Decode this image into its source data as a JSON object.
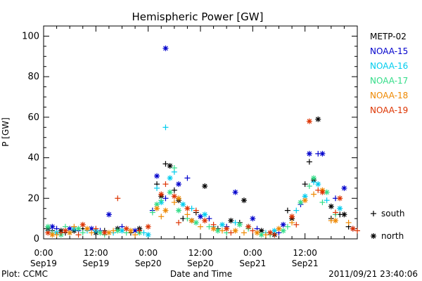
{
  "chart_data": {
    "type": "scatter",
    "title": "Hemispheric Power [GW]",
    "ylabel": "P [GW]",
    "xlabel": "Date and Time",
    "ylim": [
      0,
      105
    ],
    "xlim": [
      0,
      72
    ],
    "x_units": "hours since 2011-09-19 00:00 UT",
    "x_tick_labels": [
      {
        "x": 0,
        "time": "0:00",
        "date": "Sep19"
      },
      {
        "x": 12,
        "time": "12:00",
        "date": "Sep19"
      },
      {
        "x": 24,
        "time": "0:00",
        "date": "Sep20"
      },
      {
        "x": 36,
        "time": "12:00",
        "date": "Sep20"
      },
      {
        "x": 48,
        "time": "0:00",
        "date": "Sep21"
      },
      {
        "x": 60,
        "time": "12:00",
        "date": "Sep21"
      }
    ],
    "y_ticks": [
      0,
      20,
      40,
      60,
      80,
      100
    ],
    "marker_legend": [
      {
        "symbol": "+",
        "label": "south"
      },
      {
        "symbol": "*",
        "label": "north"
      }
    ],
    "series": [
      {
        "name": "METP-02",
        "color": "#000000",
        "south": [
          [
            2,
            4
          ],
          [
            5,
            3
          ],
          [
            9,
            5
          ],
          [
            14,
            4
          ],
          [
            20,
            3
          ],
          [
            26,
            27
          ],
          [
            28,
            37
          ],
          [
            30,
            24
          ],
          [
            32,
            10
          ],
          [
            35,
            13
          ],
          [
            40,
            5
          ],
          [
            45,
            8
          ],
          [
            52,
            3
          ],
          [
            56,
            14
          ],
          [
            60,
            27
          ],
          [
            61,
            38
          ],
          [
            66,
            10
          ],
          [
            68,
            12
          ],
          [
            70,
            6
          ]
        ],
        "north": [
          [
            1,
            5
          ],
          [
            4,
            4
          ],
          [
            7,
            4
          ],
          [
            12,
            3
          ],
          [
            17,
            5
          ],
          [
            22,
            5
          ],
          [
            27,
            21
          ],
          [
            29,
            36
          ],
          [
            31,
            19
          ],
          [
            34,
            9
          ],
          [
            37,
            26
          ],
          [
            43,
            9
          ],
          [
            46,
            19
          ],
          [
            50,
            4
          ],
          [
            53,
            2
          ],
          [
            57,
            10
          ],
          [
            62,
            29
          ],
          [
            63,
            59
          ],
          [
            66,
            16
          ],
          [
            69,
            12
          ]
        ]
      },
      {
        "name": "NOAA-15",
        "color": "#0000cc",
        "south": [
          [
            3,
            5
          ],
          [
            8,
            4
          ],
          [
            13,
            4
          ],
          [
            18,
            6
          ],
          [
            25,
            14
          ],
          [
            28,
            20
          ],
          [
            33,
            30
          ],
          [
            38,
            10
          ],
          [
            42,
            6
          ],
          [
            49,
            5
          ],
          [
            54,
            3
          ],
          [
            59,
            17
          ],
          [
            63,
            42
          ],
          [
            67,
            20
          ],
          [
            71,
            5
          ]
        ],
        "north": [
          [
            2,
            6
          ],
          [
            6,
            5
          ],
          [
            11,
            5
          ],
          [
            15,
            12
          ],
          [
            21,
            4
          ],
          [
            26,
            31
          ],
          [
            28,
            94
          ],
          [
            31,
            27
          ],
          [
            36,
            11
          ],
          [
            44,
            23
          ],
          [
            48,
            10
          ],
          [
            55,
            7
          ],
          [
            61,
            42
          ],
          [
            64,
            42
          ],
          [
            69,
            25
          ]
        ]
      },
      {
        "name": "NOAA-16",
        "color": "#00ccee",
        "south": [
          [
            1,
            4
          ],
          [
            6,
            3
          ],
          [
            10,
            4
          ],
          [
            16,
            3
          ],
          [
            23,
            3
          ],
          [
            26,
            25
          ],
          [
            28,
            55
          ],
          [
            30,
            33
          ],
          [
            34,
            15
          ],
          [
            39,
            6
          ],
          [
            44,
            8
          ],
          [
            51,
            3
          ],
          [
            58,
            14
          ],
          [
            62,
            28
          ],
          [
            65,
            19
          ]
        ],
        "north": [
          [
            3,
            3
          ],
          [
            7,
            5
          ],
          [
            12,
            4
          ],
          [
            18,
            4
          ],
          [
            24,
            2
          ],
          [
            27,
            18
          ],
          [
            29,
            30
          ],
          [
            32,
            17
          ],
          [
            37,
            12
          ],
          [
            41,
            7
          ],
          [
            47,
            6
          ],
          [
            53,
            4
          ],
          [
            60,
            21
          ],
          [
            63,
            27
          ],
          [
            68,
            15
          ]
        ]
      },
      {
        "name": "NOAA-17",
        "color": "#33dd88",
        "south": [
          [
            2,
            3
          ],
          [
            5,
            6
          ],
          [
            9,
            3
          ],
          [
            14,
            2
          ],
          [
            19,
            3
          ],
          [
            25,
            13
          ],
          [
            27,
            19
          ],
          [
            30,
            35
          ],
          [
            33,
            10
          ],
          [
            38,
            6
          ],
          [
            42,
            3
          ],
          [
            47,
            5
          ],
          [
            52,
            2
          ],
          [
            56,
            6
          ],
          [
            61,
            26
          ],
          [
            64,
            18
          ],
          [
            67,
            12
          ]
        ],
        "north": [
          [
            1,
            6
          ],
          [
            4,
            2
          ],
          [
            8,
            5
          ],
          [
            13,
            3
          ],
          [
            17,
            4
          ],
          [
            22,
            3
          ],
          [
            26,
            17
          ],
          [
            29,
            23
          ],
          [
            31,
            14
          ],
          [
            35,
            8
          ],
          [
            40,
            4
          ],
          [
            45,
            7
          ],
          [
            50,
            2
          ],
          [
            55,
            4
          ],
          [
            59,
            18
          ],
          [
            62,
            30
          ],
          [
            65,
            23
          ]
        ]
      },
      {
        "name": "NOAA-18",
        "color": "#ee8800",
        "south": [
          [
            3,
            2
          ],
          [
            7,
            6
          ],
          [
            11,
            3
          ],
          [
            16,
            4
          ],
          [
            21,
            2
          ],
          [
            27,
            11
          ],
          [
            30,
            18
          ],
          [
            33,
            12
          ],
          [
            36,
            6
          ],
          [
            41,
            4
          ],
          [
            46,
            3
          ],
          [
            51,
            2
          ],
          [
            57,
            8
          ],
          [
            62,
            22
          ],
          [
            66,
            9
          ],
          [
            70,
            8
          ]
        ],
        "north": [
          [
            2,
            2
          ],
          [
            6,
            3
          ],
          [
            10,
            5
          ],
          [
            15,
            3
          ],
          [
            20,
            4
          ],
          [
            26,
            15
          ],
          [
            28,
            14
          ],
          [
            31,
            20
          ],
          [
            34,
            9
          ],
          [
            39,
            5
          ],
          [
            44,
            4
          ],
          [
            49,
            3
          ],
          [
            54,
            5
          ],
          [
            60,
            19
          ],
          [
            64,
            24
          ],
          [
            67,
            9
          ]
        ]
      },
      {
        "name": "NOAA-19",
        "color": "#dd3300",
        "south": [
          [
            4,
            3
          ],
          [
            8,
            2
          ],
          [
            12,
            5
          ],
          [
            17,
            20
          ],
          [
            22,
            4
          ],
          [
            28,
            27
          ],
          [
            31,
            8
          ],
          [
            35,
            14
          ],
          [
            39,
            7
          ],
          [
            43,
            3
          ],
          [
            48,
            4
          ],
          [
            53,
            2
          ],
          [
            58,
            7
          ],
          [
            63,
            24
          ],
          [
            67,
            13
          ],
          [
            72,
            4
          ]
        ],
        "north": [
          [
            1,
            3
          ],
          [
            5,
            4
          ],
          [
            9,
            7
          ],
          [
            14,
            3
          ],
          [
            19,
            5
          ],
          [
            24,
            6
          ],
          [
            27,
            22
          ],
          [
            30,
            21
          ],
          [
            33,
            15
          ],
          [
            37,
            9
          ],
          [
            42,
            5
          ],
          [
            47,
            6
          ],
          [
            52,
            3
          ],
          [
            57,
            11
          ],
          [
            61,
            58
          ],
          [
            64,
            23
          ],
          [
            68,
            20
          ],
          [
            71,
            5
          ]
        ]
      }
    ]
  },
  "footer": {
    "plot_credit": "Plot: CCMC",
    "timestamp": "2011/09/21 23:40:06"
  }
}
